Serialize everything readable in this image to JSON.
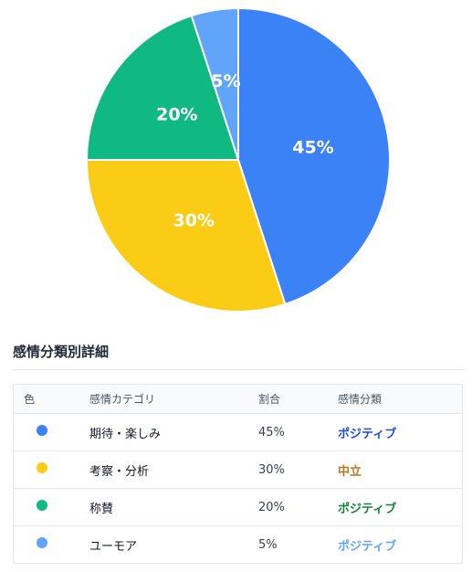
{
  "chart_data": {
    "type": "pie",
    "slices": [
      {
        "category": "期待・楽しみ",
        "value": 45,
        "label": "45%",
        "color": "#3b82f6"
      },
      {
        "category": "考察・分析",
        "value": 30,
        "label": "30%",
        "color": "#facc15"
      },
      {
        "category": "称賛",
        "value": 20,
        "label": "20%",
        "color": "#10b981"
      },
      {
        "category": "ユーモア",
        "value": 5,
        "label": "5%",
        "color": "#60a5fa"
      }
    ]
  },
  "section": {
    "title": "感情分類別詳細"
  },
  "table": {
    "headers": {
      "color": "色",
      "category": "感情カテゴリ",
      "ratio": "割合",
      "sentiment": "感情分類"
    },
    "rows": [
      {
        "color": "#3b82f6",
        "category": "期待・楽しみ",
        "ratio": "45%",
        "sentiment": "ポジティブ",
        "sentiment_color": "#1d4ed8"
      },
      {
        "color": "#facc15",
        "category": "考察・分析",
        "ratio": "30%",
        "sentiment": "中立",
        "sentiment_color": "#b7791f"
      },
      {
        "color": "#10b981",
        "category": "称賛",
        "ratio": "20%",
        "sentiment": "ポジティブ",
        "sentiment_color": "#15803d"
      },
      {
        "color": "#60a5fa",
        "category": "ユーモア",
        "ratio": "5%",
        "sentiment": "ポジティブ",
        "sentiment_color": "#60a5fa"
      }
    ]
  }
}
